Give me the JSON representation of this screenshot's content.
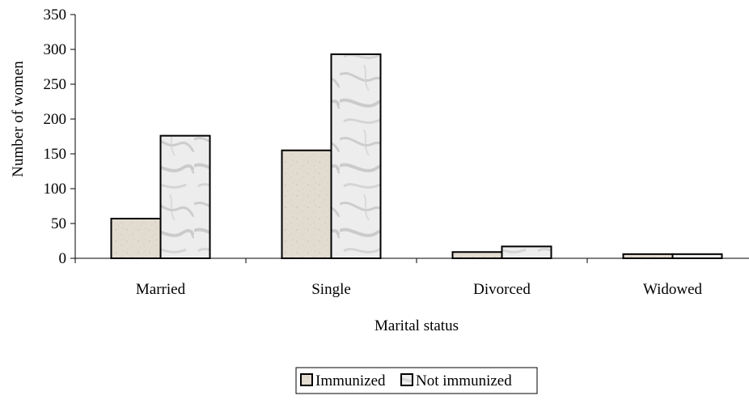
{
  "chart_data": {
    "type": "bar",
    "title": "",
    "xlabel": "Marital status",
    "ylabel": "Number of women",
    "categories": [
      "Married",
      "Single",
      "Divorced",
      "Widowed"
    ],
    "ylim": [
      0,
      350
    ],
    "yticks": [
      "0",
      "50",
      "100",
      "150",
      "200",
      "250",
      "300",
      "350"
    ],
    "grid": false,
    "legend_position": "bottom",
    "series": [
      {
        "name": "Immunized",
        "values": [
          57,
          155,
          9,
          6
        ],
        "color": "#e2dbd0",
        "pattern": "speckled"
      },
      {
        "name": "Not immunized",
        "values": [
          176,
          293,
          17,
          6
        ],
        "color": "#e8e8e8",
        "pattern": "marble"
      }
    ]
  }
}
